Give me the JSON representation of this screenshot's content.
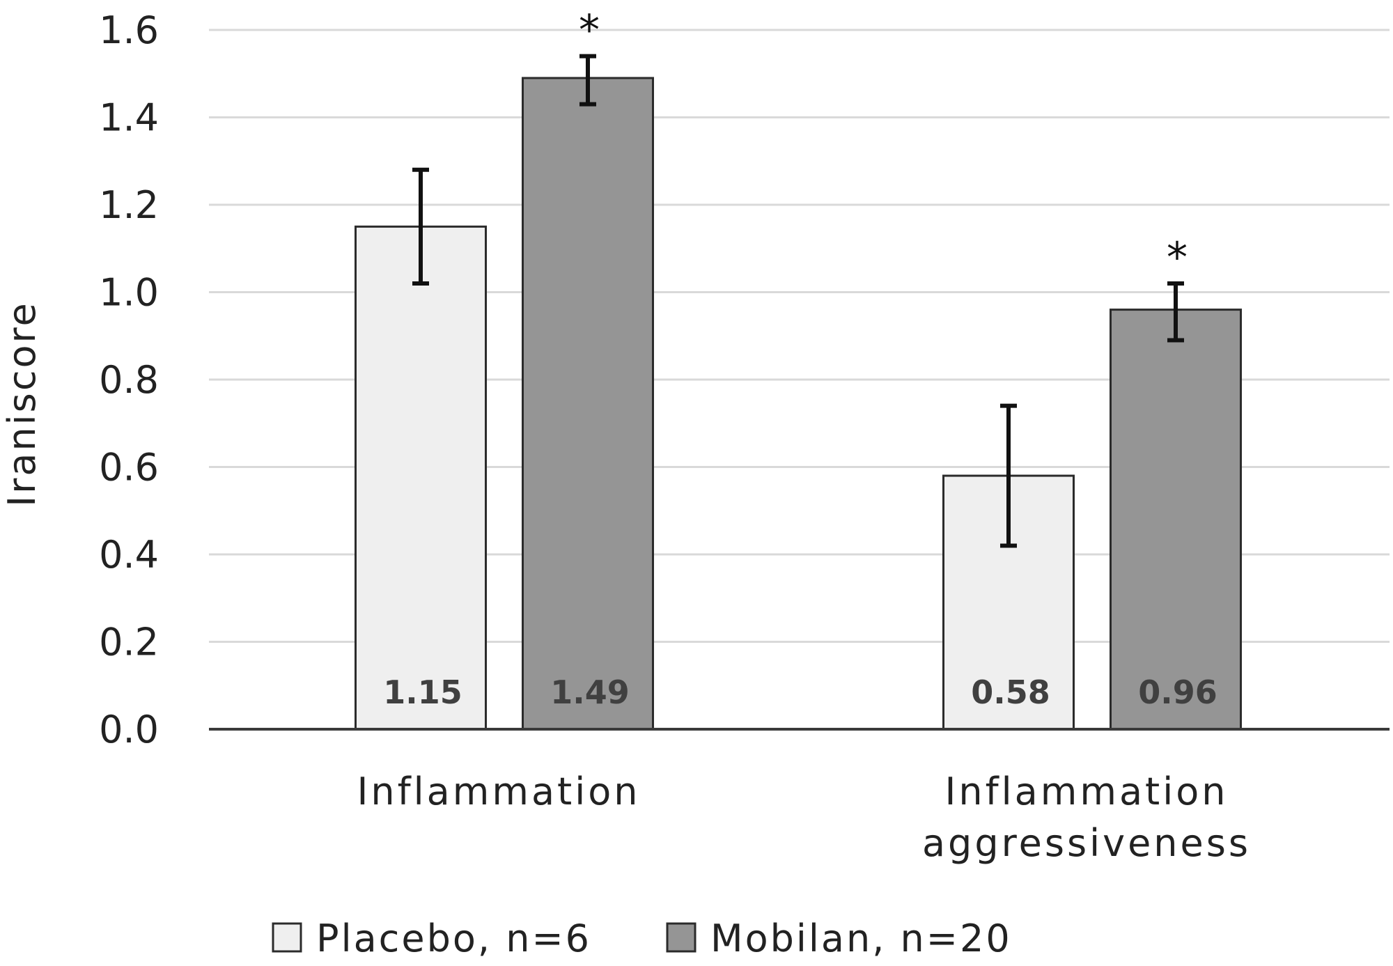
{
  "chart_data": {
    "type": "bar",
    "ylabel": "Iraniscore",
    "xlabel": "",
    "ylim": [
      0,
      1.6
    ],
    "ytick_values": [
      0.0,
      0.2,
      0.4,
      0.6,
      0.8,
      1.0,
      1.2,
      1.4,
      1.6
    ],
    "ytick_labels": [
      "0.0",
      "0.2",
      "0.4",
      "0.6",
      "0.8",
      "1.0",
      "1.2",
      "1.4",
      "1.6"
    ],
    "grid": true,
    "categories": [
      [
        "Inflammation"
      ],
      [
        "Inflammation",
        "aggressiveness"
      ]
    ],
    "series": [
      {
        "name": "Placebo, n=6",
        "color": "#efefef",
        "values": [
          1.15,
          0.58
        ],
        "value_labels": [
          "1.15",
          "0.58"
        ],
        "error_low": [
          1.02,
          0.42
        ],
        "error_high": [
          1.28,
          0.74
        ],
        "significance": [
          "",
          ""
        ]
      },
      {
        "name": "Mobilan, n=20",
        "color": "#959595",
        "values": [
          1.49,
          0.96
        ],
        "value_labels": [
          "1.49",
          "0.96"
        ],
        "error_low": [
          1.43,
          0.89
        ],
        "error_high": [
          1.54,
          1.02
        ],
        "significance": [
          "*",
          "*"
        ]
      }
    ],
    "legend_position": "bottom",
    "gridline_color": "#d9d9d9",
    "axis_color": "#3a3a3a",
    "bar_outline_color": "#2b2b2b"
  }
}
